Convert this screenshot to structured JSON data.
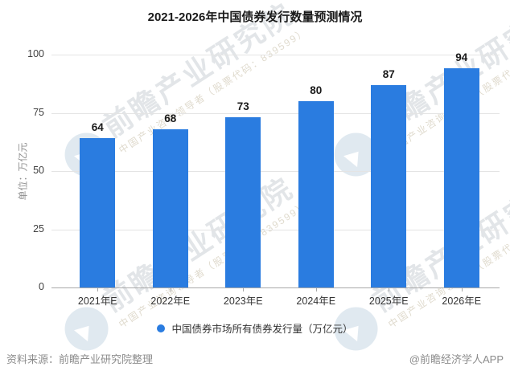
{
  "title": "2021-2026年中国债券发行数量预测情况",
  "unit_label": "单位：万亿元",
  "chart_data": {
    "type": "bar",
    "title": "2021-2026年中国债券发行数量预测情况",
    "categories": [
      "2021年E",
      "2022年E",
      "2023年E",
      "2024年E",
      "2025年E",
      "2026年E"
    ],
    "values": [
      64,
      68,
      73,
      80,
      87,
      94
    ],
    "xlabel": "",
    "ylabel": "单位：万亿元",
    "yticks": [
      0,
      25,
      50,
      75,
      100
    ],
    "ylim": [
      0,
      107
    ],
    "grid": true,
    "legend_position": "bottom",
    "bar_color": "#2a7ce0"
  },
  "legend": {
    "label": "中国债券市场所有债券发行量（万亿元）",
    "marker_color": "#2a7ce0"
  },
  "footer": {
    "source": "资料来源：前瞻产业研究院整理",
    "credit": "@前瞻经济学人APP"
  },
  "watermark": {
    "main": "前瞻产业研究院",
    "sub": "中国产业咨询领导者（股票代码：839599）"
  },
  "colors": {
    "bar": "#2a7ce0",
    "grid": "#e4e4e4",
    "axis": "#a8a8a8",
    "text": "#333333",
    "muted": "#8c8c8c"
  }
}
